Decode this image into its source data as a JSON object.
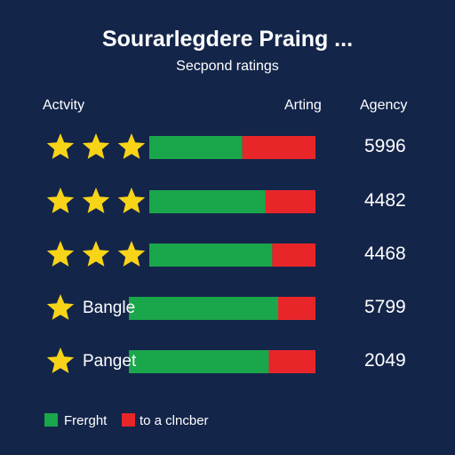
{
  "chart_data": {
    "type": "bar",
    "title": "Sourarlegdere Praing ...",
    "subtitle": "Secpond ratings",
    "column_headers": {
      "activity": "Actvity",
      "rating": "Arting",
      "agency": "Agency"
    },
    "rows": [
      {
        "stars": 3,
        "label": "",
        "green_fraction": 0.56,
        "value": "5996"
      },
      {
        "stars": 3,
        "label": "",
        "green_fraction": 0.7,
        "value": "4482"
      },
      {
        "stars": 3,
        "label": "",
        "green_fraction": 0.74,
        "value": "4468"
      },
      {
        "stars": 1,
        "label": "Bangle",
        "green_fraction": 0.8,
        "value": "5799"
      },
      {
        "stars": 1,
        "label": "Panget",
        "green_fraction": 0.75,
        "value": "2049"
      }
    ],
    "legend": [
      {
        "label": "Frerght",
        "color": "#1aa64a"
      },
      {
        "label": "to a clncber",
        "color": "#e8262a"
      }
    ],
    "colors": {
      "green": "#1aa64a",
      "red": "#e8262a",
      "star": "#f7d417",
      "background": "#14254a"
    },
    "grid": false,
    "legend_position": "bottom-left"
  }
}
